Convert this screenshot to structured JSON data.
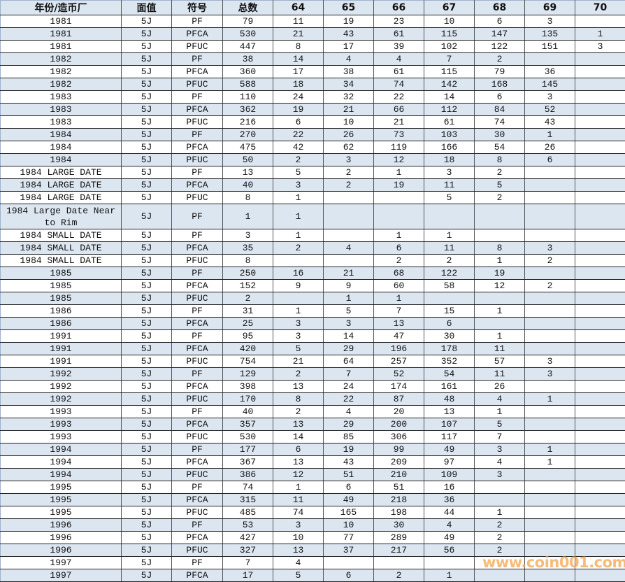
{
  "headers": [
    "年份/造币厂",
    "面值",
    "符号",
    "总数",
    "64",
    "65",
    "66",
    "67",
    "68",
    "69",
    "70"
  ],
  "rows": [
    [
      "1981",
      "5J",
      "PF",
      "79",
      "11",
      "19",
      "23",
      "10",
      "6",
      "3",
      ""
    ],
    [
      "1981",
      "5J",
      "PFCA",
      "530",
      "21",
      "43",
      "61",
      "115",
      "147",
      "135",
      "1"
    ],
    [
      "1981",
      "5J",
      "PFUC",
      "447",
      "8",
      "17",
      "39",
      "102",
      "122",
      "151",
      "3"
    ],
    [
      "1982",
      "5J",
      "PF",
      "38",
      "14",
      "4",
      "4",
      "7",
      "2",
      "",
      ""
    ],
    [
      "1982",
      "5J",
      "PFCA",
      "360",
      "17",
      "38",
      "61",
      "115",
      "79",
      "36",
      ""
    ],
    [
      "1982",
      "5J",
      "PFUC",
      "588",
      "18",
      "34",
      "74",
      "142",
      "168",
      "145",
      ""
    ],
    [
      "1983",
      "5J",
      "PF",
      "110",
      "24",
      "32",
      "22",
      "14",
      "6",
      "3",
      ""
    ],
    [
      "1983",
      "5J",
      "PFCA",
      "362",
      "19",
      "21",
      "66",
      "112",
      "84",
      "52",
      ""
    ],
    [
      "1983",
      "5J",
      "PFUC",
      "216",
      "6",
      "10",
      "21",
      "61",
      "74",
      "43",
      ""
    ],
    [
      "1984",
      "5J",
      "PF",
      "270",
      "22",
      "26",
      "73",
      "103",
      "30",
      "1",
      ""
    ],
    [
      "1984",
      "5J",
      "PFCA",
      "475",
      "42",
      "62",
      "119",
      "166",
      "54",
      "26",
      ""
    ],
    [
      "1984",
      "5J",
      "PFUC",
      "50",
      "2",
      "3",
      "12",
      "18",
      "8",
      "6",
      ""
    ],
    [
      "1984 LARGE DATE",
      "5J",
      "PF",
      "13",
      "5",
      "2",
      "1",
      "3",
      "2",
      "",
      ""
    ],
    [
      "1984 LARGE DATE",
      "5J",
      "PFCA",
      "40",
      "3",
      "2",
      "19",
      "11",
      "5",
      "",
      ""
    ],
    [
      "1984 LARGE DATE",
      "5J",
      "PFUC",
      "8",
      "1",
      "",
      "",
      "5",
      "2",
      "",
      ""
    ],
    [
      "1984 Large Date Near to Rim",
      "5J",
      "PF",
      "1",
      "1",
      "",
      "",
      "",
      "",
      "",
      ""
    ],
    [
      "1984 SMALL DATE",
      "5J",
      "PF",
      "3",
      "1",
      "",
      "1",
      "1",
      "",
      "",
      ""
    ],
    [
      "1984 SMALL DATE",
      "5J",
      "PFCA",
      "35",
      "2",
      "4",
      "6",
      "11",
      "8",
      "3",
      ""
    ],
    [
      "1984 SMALL DATE",
      "5J",
      "PFUC",
      "8",
      "",
      "",
      "2",
      "2",
      "1",
      "2",
      ""
    ],
    [
      "1985",
      "5J",
      "PF",
      "250",
      "16",
      "21",
      "68",
      "122",
      "19",
      "",
      ""
    ],
    [
      "1985",
      "5J",
      "PFCA",
      "152",
      "9",
      "9",
      "60",
      "58",
      "12",
      "2",
      ""
    ],
    [
      "1985",
      "5J",
      "PFUC",
      "2",
      "",
      "1",
      "1",
      "",
      "",
      "",
      ""
    ],
    [
      "1986",
      "5J",
      "PF",
      "31",
      "1",
      "5",
      "7",
      "15",
      "1",
      "",
      ""
    ],
    [
      "1986",
      "5J",
      "PFCA",
      "25",
      "3",
      "3",
      "13",
      "6",
      "",
      "",
      ""
    ],
    [
      "1991",
      "5J",
      "PF",
      "95",
      "3",
      "14",
      "47",
      "30",
      "1",
      "",
      ""
    ],
    [
      "1991",
      "5J",
      "PFCA",
      "420",
      "5",
      "29",
      "196",
      "178",
      "11",
      "",
      ""
    ],
    [
      "1991",
      "5J",
      "PFUC",
      "754",
      "21",
      "64",
      "257",
      "352",
      "57",
      "3",
      ""
    ],
    [
      "1992",
      "5J",
      "PF",
      "129",
      "2",
      "7",
      "52",
      "54",
      "11",
      "3",
      ""
    ],
    [
      "1992",
      "5J",
      "PFCA",
      "398",
      "13",
      "24",
      "174",
      "161",
      "26",
      "",
      ""
    ],
    [
      "1992",
      "5J",
      "PFUC",
      "170",
      "8",
      "22",
      "87",
      "48",
      "4",
      "1",
      ""
    ],
    [
      "1993",
      "5J",
      "PF",
      "40",
      "2",
      "4",
      "20",
      "13",
      "1",
      "",
      ""
    ],
    [
      "1993",
      "5J",
      "PFCA",
      "357",
      "13",
      "29",
      "200",
      "107",
      "5",
      "",
      ""
    ],
    [
      "1993",
      "5J",
      "PFUC",
      "530",
      "14",
      "85",
      "306",
      "117",
      "7",
      "",
      ""
    ],
    [
      "1994",
      "5J",
      "PF",
      "177",
      "6",
      "19",
      "99",
      "49",
      "3",
      "1",
      ""
    ],
    [
      "1994",
      "5J",
      "PFCA",
      "367",
      "13",
      "43",
      "209",
      "97",
      "4",
      "1",
      ""
    ],
    [
      "1994",
      "5J",
      "PFUC",
      "386",
      "12",
      "51",
      "210",
      "109",
      "3",
      "",
      ""
    ],
    [
      "1995",
      "5J",
      "PF",
      "74",
      "1",
      "6",
      "51",
      "16",
      "",
      "",
      ""
    ],
    [
      "1995",
      "5J",
      "PFCA",
      "315",
      "11",
      "49",
      "218",
      "36",
      "",
      "",
      ""
    ],
    [
      "1995",
      "5J",
      "PFUC",
      "485",
      "74",
      "165",
      "198",
      "44",
      "1",
      "",
      ""
    ],
    [
      "1996",
      "5J",
      "PF",
      "53",
      "3",
      "10",
      "30",
      "4",
      "2",
      "",
      ""
    ],
    [
      "1996",
      "5J",
      "PFCA",
      "427",
      "10",
      "77",
      "289",
      "49",
      "2",
      "",
      ""
    ],
    [
      "1996",
      "5J",
      "PFUC",
      "327",
      "13",
      "37",
      "217",
      "56",
      "2",
      "",
      ""
    ],
    [
      "1997",
      "5J",
      "PF",
      "7",
      "4",
      "",
      "",
      "",
      "",
      "",
      ""
    ],
    [
      "1997",
      "5J",
      "PFCA",
      "17",
      "5",
      "6",
      "2",
      "1",
      "",
      "",
      ""
    ]
  ],
  "watermark": "www.coin001.com",
  "colors": {
    "row_alt": "#dce6f1",
    "watermark": "#f5a54a"
  }
}
